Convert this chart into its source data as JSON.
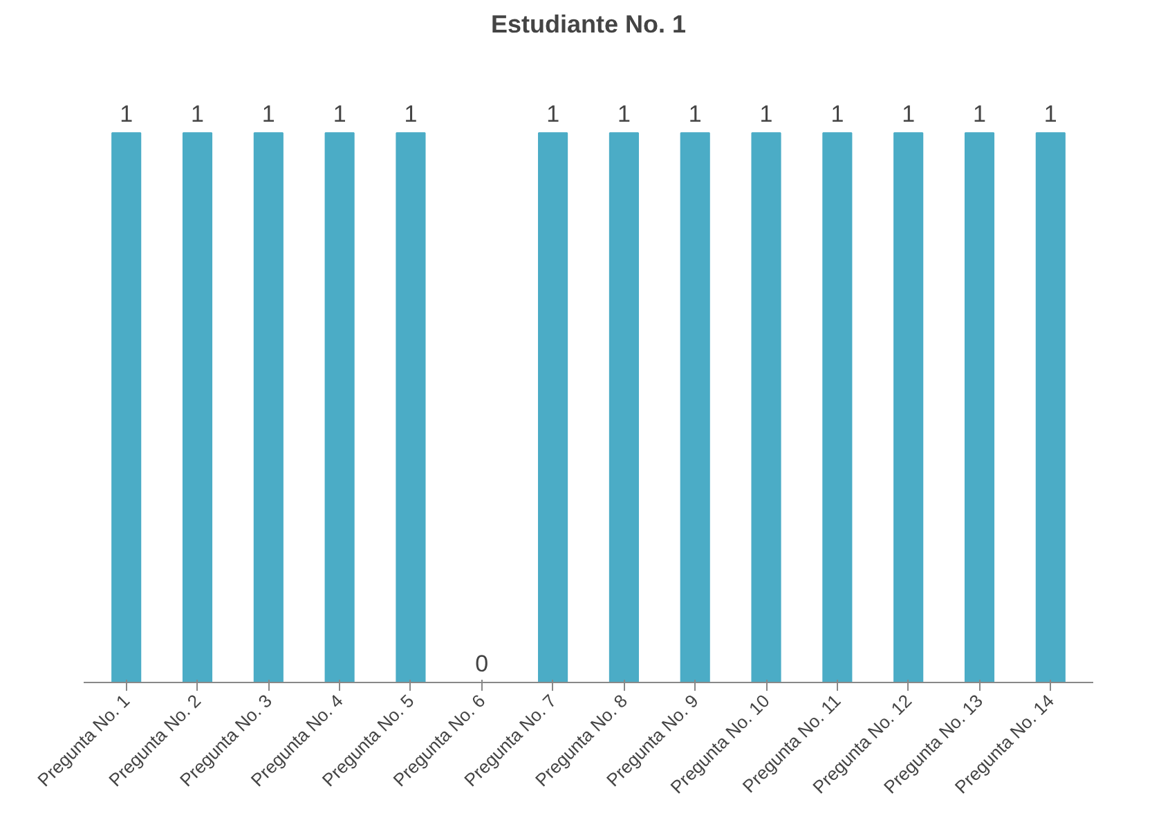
{
  "chart_data": {
    "type": "bar",
    "title": "Estudiante No. 1",
    "categories": [
      "Pregunta No. 1",
      "Pregunta No. 2",
      "Pregunta No. 3",
      "Pregunta No. 4",
      "Pregunta No. 5",
      "Pregunta No. 6",
      "Pregunta No. 7",
      "Pregunta No. 8",
      "Pregunta No. 9",
      "Pregunta No. 10",
      "Pregunta No. 11",
      "Pregunta No. 12",
      "Pregunta No. 13",
      "Pregunta No. 14"
    ],
    "values": [
      1,
      1,
      1,
      1,
      1,
      0,
      1,
      1,
      1,
      1,
      1,
      1,
      1,
      1
    ],
    "color": "#4bacc6",
    "data_labels": true,
    "grid": false
  }
}
